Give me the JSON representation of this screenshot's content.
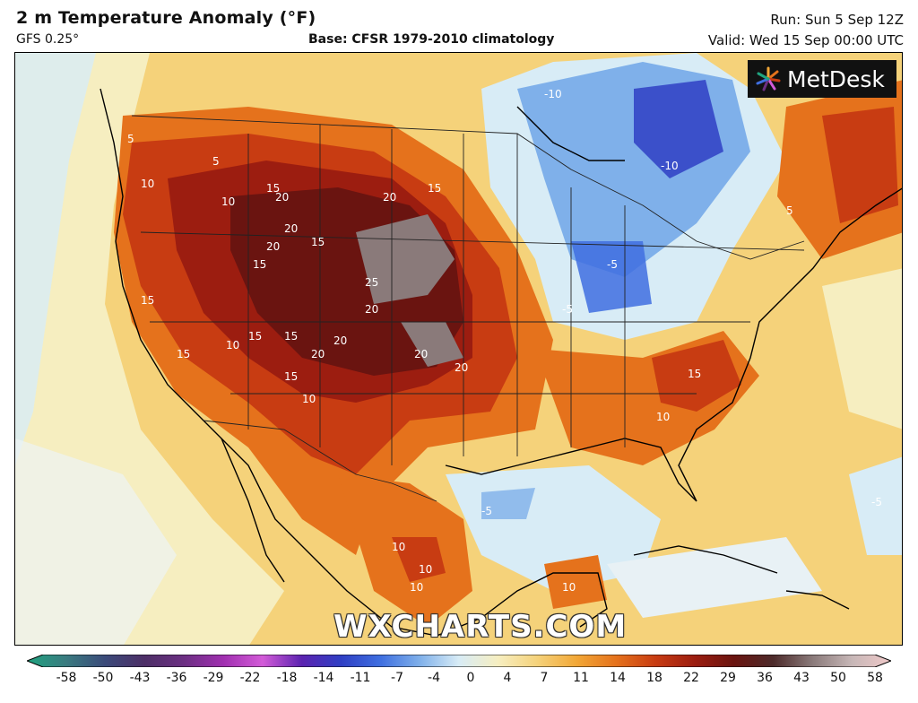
{
  "header": {
    "title": "2 m Temperature Anomaly (°F)",
    "model": "GFS 0.25°",
    "base": "Base: CFSR 1979-2010 climatology",
    "run": "Run: Sun 5 Sep 12Z",
    "valid": "Valid: Wed 15 Sep 00:00 UTC"
  },
  "map": {
    "logo_text": "MetDesk",
    "watermark": "WXCHARTS.COM",
    "contour_labels": {
      "hot_west": [
        "20",
        "20",
        "20",
        "25",
        "20",
        "20",
        "20",
        "20",
        "20",
        "20",
        "15",
        "15",
        "15",
        "15",
        "15",
        "15",
        "15",
        "15",
        "15",
        "10",
        "10",
        "10",
        "10",
        "10",
        "5",
        "5"
      ],
      "cold_east": [
        "-10",
        "-10",
        "-5",
        "-5",
        "-5",
        "-5"
      ],
      "southeast": [
        "15",
        "10",
        "5"
      ],
      "mexico": [
        "10",
        "10",
        "10"
      ]
    }
  },
  "colorbar": {
    "ticks": [
      "-58",
      "-50",
      "-43",
      "-36",
      "-29",
      "-22",
      "-18",
      "-14",
      "-11",
      "-7",
      "-4",
      "0",
      "4",
      "7",
      "11",
      "14",
      "18",
      "22",
      "29",
      "36",
      "43",
      "50",
      "58"
    ],
    "colors": [
      "#1fa37f",
      "#3a7b80",
      "#3b4a7a",
      "#4d2f67",
      "#6c2f83",
      "#a02fb0",
      "#d35bd8",
      "#5b23b0",
      "#2f3fc4",
      "#3f6fe0",
      "#7fb0ea",
      "#d8ecf6",
      "#f6eec0",
      "#f5d27a",
      "#f2a736",
      "#e5721c",
      "#c83c12",
      "#9c1d10",
      "#6a1410",
      "#4d2b2b",
      "#8a7a7a",
      "#c7b7b7",
      "#f0c9c9"
    ]
  }
}
